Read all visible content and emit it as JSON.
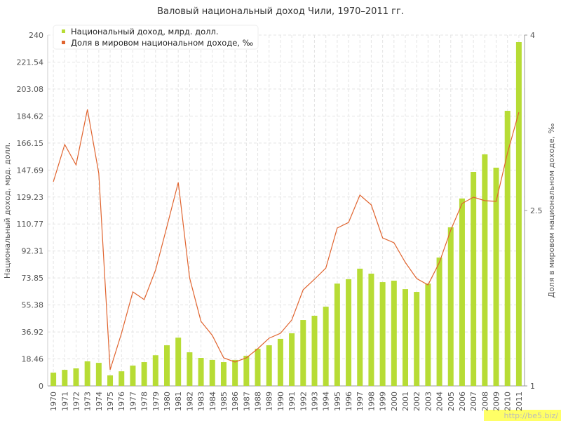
{
  "chart_data": {
    "type": "bar_line",
    "title": "Валовый национальный доход Чили, 1970–2011 гг.",
    "y_label": "Национальный доход, мрд. долл.",
    "y2_label": "Доля в мировом национальном доходе, ‰",
    "watermark": "http://be5.biz/",
    "categories": [
      "1970",
      "1971",
      "1972",
      "1973",
      "1974",
      "1975",
      "1976",
      "1977",
      "1978",
      "1979",
      "1980",
      "1981",
      "1982",
      "1983",
      "1984",
      "1985",
      "1986",
      "1987",
      "1988",
      "1989",
      "1990",
      "1991",
      "1992",
      "1993",
      "1994",
      "1995",
      "1996",
      "1997",
      "1998",
      "1999",
      "2000",
      "2001",
      "2002",
      "2003",
      "2004",
      "2005",
      "2006",
      "2007",
      "2008",
      "2009",
      "2010",
      "2011"
    ],
    "series": [
      {
        "name": "Национальный доход, млрд. долл.",
        "type": "bar",
        "color": "#b7dc35",
        "values": [
          9.1,
          11,
          12,
          16.8,
          15.8,
          7.2,
          10,
          13.9,
          16.3,
          21,
          27.8,
          33,
          23,
          19.2,
          17.8,
          16.3,
          17.8,
          20.6,
          25.4,
          27.8,
          32.2,
          36,
          45.1,
          48,
          54.2,
          70,
          73,
          80.2,
          76.8,
          71,
          72,
          66.2,
          64.3,
          70,
          87.8,
          108.5,
          128.2,
          146.4,
          158.4,
          149.3,
          188.2,
          235.2
        ]
      },
      {
        "name": "Доля в мировом национальном доходе, ‰",
        "type": "line",
        "axis": "y2",
        "color": "#e0642f",
        "values": [
          2.746,
          3.064,
          2.89,
          3.364,
          2.818,
          1.138,
          1.45,
          1.804,
          1.738,
          1.99,
          2.362,
          2.74,
          1.924,
          1.552,
          1.432,
          1.24,
          1.204,
          1.24,
          1.318,
          1.408,
          1.45,
          1.564,
          1.822,
          1.912,
          2.008,
          2.35,
          2.398,
          2.632,
          2.548,
          2.266,
          2.224,
          2.056,
          1.918,
          1.864,
          2.056,
          2.332,
          2.56,
          2.614,
          2.584,
          2.578,
          2.992,
          3.34
        ]
      }
    ],
    "ylim": [
      0,
      240
    ],
    "yticks": [
      0,
      18.46,
      36.92,
      55.38,
      73.85,
      92.31,
      110.77,
      129.23,
      147.69,
      166.15,
      184.62,
      203.08,
      221.54,
      240
    ],
    "y2lim": [
      1,
      4
    ],
    "y2ticks": [
      1,
      2.5,
      4
    ],
    "grid": true
  }
}
